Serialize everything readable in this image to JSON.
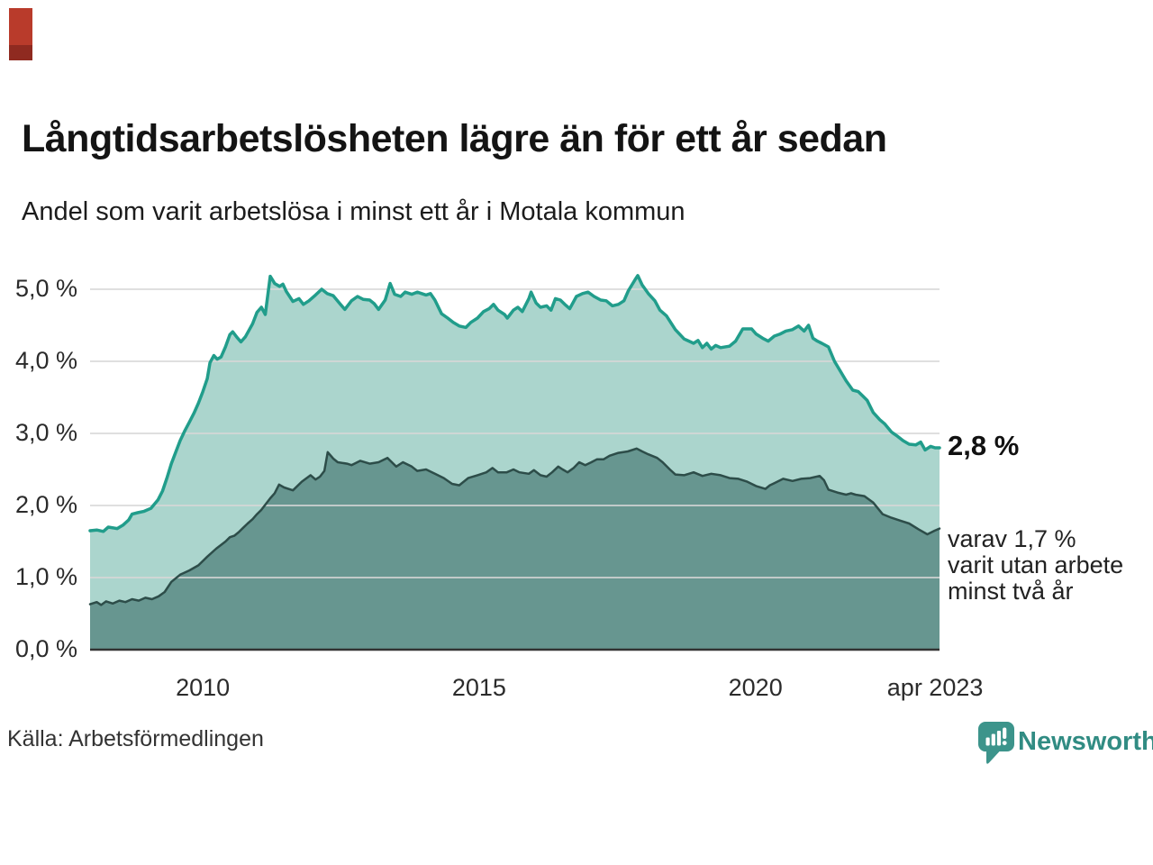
{
  "header": {
    "title": "Långtidsarbetslösheten lägre än för ett år sedan",
    "subtitle": "Andel som varit arbetslösa i minst ett år i Motala kommun"
  },
  "annotations": {
    "end_value": "2,8 %",
    "detail": [
      "varav 1,7 %",
      "varit utan arbete",
      "minst två år"
    ]
  },
  "footer": {
    "source": "Källa: Arbetsförmedlingen",
    "brand": "Newsworthy"
  },
  "colors": {
    "accent_teal_line": "#219d8b",
    "area_light_fill": "#abd5cd",
    "area_dark_fill": "#679690",
    "area_dark_line": "#2d4d49",
    "gridline": "#d8d8d8",
    "baseline": "#333333",
    "brand_teal": "#3c948b",
    "red_marker_top": "#b93b2b",
    "red_marker_bottom": "#8f2a20"
  },
  "chart_data": {
    "type": "area",
    "xlabel": "",
    "ylabel": "",
    "xlim": [
      2007.96,
      2023.33
    ],
    "ylim": [
      0,
      5.3
    ],
    "grid": true,
    "legend_position": "none",
    "x_ticks": [
      {
        "label": "2010",
        "x": 2010
      },
      {
        "label": "2015",
        "x": 2015
      },
      {
        "label": "2020",
        "x": 2020
      },
      {
        "label": "apr 2023",
        "x": 2023.25
      }
    ],
    "y_ticks": [
      {
        "label": "5,0 %",
        "value": 5.0
      },
      {
        "label": "4,0 %",
        "value": 4.0
      },
      {
        "label": "3,0 %",
        "value": 3.0
      },
      {
        "label": "2,0 %",
        "value": 2.0
      },
      {
        "label": "1,0 %",
        "value": 1.0
      },
      {
        "label": "0,0 %",
        "value": 0.0
      }
    ],
    "series": [
      {
        "name": "Arbetslösa minst ett år",
        "end_value_pct": 2.8,
        "fill": "#abd5cd",
        "stroke": "#219d8b",
        "stroke_width": 3.5,
        "points": [
          [
            2007.96,
            1.65
          ],
          [
            2008.08,
            1.66
          ],
          [
            2008.2,
            1.64
          ],
          [
            2008.29,
            1.7
          ],
          [
            2008.45,
            1.68
          ],
          [
            2008.56,
            1.73
          ],
          [
            2008.66,
            1.8
          ],
          [
            2008.72,
            1.88
          ],
          [
            2008.82,
            1.9
          ],
          [
            2008.94,
            1.92
          ],
          [
            2009.06,
            1.96
          ],
          [
            2009.19,
            2.08
          ],
          [
            2009.27,
            2.2
          ],
          [
            2009.35,
            2.38
          ],
          [
            2009.43,
            2.58
          ],
          [
            2009.51,
            2.74
          ],
          [
            2009.59,
            2.9
          ],
          [
            2009.67,
            3.03
          ],
          [
            2009.76,
            3.16
          ],
          [
            2009.84,
            3.28
          ],
          [
            2009.92,
            3.42
          ],
          [
            2010.0,
            3.58
          ],
          [
            2010.08,
            3.76
          ],
          [
            2010.13,
            3.98
          ],
          [
            2010.2,
            4.08
          ],
          [
            2010.26,
            4.03
          ],
          [
            2010.33,
            4.06
          ],
          [
            2010.41,
            4.2
          ],
          [
            2010.49,
            4.37
          ],
          [
            2010.54,
            4.41
          ],
          [
            2010.62,
            4.33
          ],
          [
            2010.69,
            4.27
          ],
          [
            2010.77,
            4.34
          ],
          [
            2010.9,
            4.52
          ],
          [
            2010.98,
            4.68
          ],
          [
            2011.06,
            4.75
          ],
          [
            2011.13,
            4.65
          ],
          [
            2011.22,
            5.18
          ],
          [
            2011.3,
            5.08
          ],
          [
            2011.39,
            5.04
          ],
          [
            2011.45,
            5.07
          ],
          [
            2011.51,
            4.97
          ],
          [
            2011.63,
            4.83
          ],
          [
            2011.74,
            4.87
          ],
          [
            2011.82,
            4.79
          ],
          [
            2011.92,
            4.84
          ],
          [
            2012.04,
            4.92
          ],
          [
            2012.15,
            5.0
          ],
          [
            2012.25,
            4.94
          ],
          [
            2012.36,
            4.91
          ],
          [
            2012.48,
            4.8
          ],
          [
            2012.57,
            4.72
          ],
          [
            2012.69,
            4.84
          ],
          [
            2012.8,
            4.9
          ],
          [
            2012.9,
            4.86
          ],
          [
            2013.02,
            4.85
          ],
          [
            2013.1,
            4.8
          ],
          [
            2013.18,
            4.72
          ],
          [
            2013.3,
            4.85
          ],
          [
            2013.39,
            5.08
          ],
          [
            2013.47,
            4.93
          ],
          [
            2013.58,
            4.9
          ],
          [
            2013.66,
            4.96
          ],
          [
            2013.78,
            4.93
          ],
          [
            2013.88,
            4.96
          ],
          [
            2014.04,
            4.92
          ],
          [
            2014.12,
            4.94
          ],
          [
            2014.2,
            4.85
          ],
          [
            2014.32,
            4.66
          ],
          [
            2014.43,
            4.6
          ],
          [
            2014.53,
            4.54
          ],
          [
            2014.64,
            4.49
          ],
          [
            2014.76,
            4.47
          ],
          [
            2014.85,
            4.54
          ],
          [
            2014.97,
            4.6
          ],
          [
            2015.08,
            4.69
          ],
          [
            2015.18,
            4.73
          ],
          [
            2015.26,
            4.79
          ],
          [
            2015.34,
            4.71
          ],
          [
            2015.46,
            4.65
          ],
          [
            2015.51,
            4.6
          ],
          [
            2015.62,
            4.71
          ],
          [
            2015.7,
            4.75
          ],
          [
            2015.78,
            4.69
          ],
          [
            2015.9,
            4.87
          ],
          [
            2015.94,
            4.96
          ],
          [
            2016.03,
            4.81
          ],
          [
            2016.11,
            4.75
          ],
          [
            2016.22,
            4.77
          ],
          [
            2016.3,
            4.71
          ],
          [
            2016.38,
            4.87
          ],
          [
            2016.47,
            4.85
          ],
          [
            2016.55,
            4.79
          ],
          [
            2016.64,
            4.73
          ],
          [
            2016.76,
            4.9
          ],
          [
            2016.87,
            4.94
          ],
          [
            2016.97,
            4.96
          ],
          [
            2017.08,
            4.9
          ],
          [
            2017.2,
            4.85
          ],
          [
            2017.3,
            4.84
          ],
          [
            2017.41,
            4.77
          ],
          [
            2017.52,
            4.79
          ],
          [
            2017.62,
            4.84
          ],
          [
            2017.7,
            4.98
          ],
          [
            2017.82,
            5.13
          ],
          [
            2017.87,
            5.19
          ],
          [
            2017.95,
            5.06
          ],
          [
            2018.06,
            4.94
          ],
          [
            2018.18,
            4.84
          ],
          [
            2018.27,
            4.71
          ],
          [
            2018.39,
            4.63
          ],
          [
            2018.55,
            4.44
          ],
          [
            2018.71,
            4.31
          ],
          [
            2018.88,
            4.25
          ],
          [
            2018.96,
            4.29
          ],
          [
            2019.04,
            4.19
          ],
          [
            2019.12,
            4.25
          ],
          [
            2019.2,
            4.17
          ],
          [
            2019.28,
            4.22
          ],
          [
            2019.37,
            4.19
          ],
          [
            2019.53,
            4.21
          ],
          [
            2019.64,
            4.28
          ],
          [
            2019.77,
            4.45
          ],
          [
            2019.93,
            4.45
          ],
          [
            2020.01,
            4.38
          ],
          [
            2020.13,
            4.32
          ],
          [
            2020.23,
            4.28
          ],
          [
            2020.34,
            4.35
          ],
          [
            2020.45,
            4.38
          ],
          [
            2020.55,
            4.42
          ],
          [
            2020.67,
            4.44
          ],
          [
            2020.78,
            4.49
          ],
          [
            2020.88,
            4.42
          ],
          [
            2020.96,
            4.5
          ],
          [
            2021.04,
            4.32
          ],
          [
            2021.12,
            4.28
          ],
          [
            2021.2,
            4.25
          ],
          [
            2021.32,
            4.2
          ],
          [
            2021.43,
            4.0
          ],
          [
            2021.53,
            3.87
          ],
          [
            2021.64,
            3.73
          ],
          [
            2021.76,
            3.6
          ],
          [
            2021.86,
            3.58
          ],
          [
            2021.94,
            3.52
          ],
          [
            2022.02,
            3.46
          ],
          [
            2022.13,
            3.29
          ],
          [
            2022.25,
            3.19
          ],
          [
            2022.34,
            3.13
          ],
          [
            2022.46,
            3.02
          ],
          [
            2022.57,
            2.96
          ],
          [
            2022.67,
            2.9
          ],
          [
            2022.78,
            2.85
          ],
          [
            2022.9,
            2.84
          ],
          [
            2022.99,
            2.88
          ],
          [
            2023.07,
            2.77
          ],
          [
            2023.17,
            2.82
          ],
          [
            2023.25,
            2.8
          ],
          [
            2023.33,
            2.8
          ]
        ]
      },
      {
        "name": "Utan arbete minst två år",
        "end_value_pct": 1.7,
        "fill": "#679690",
        "stroke": "#2d4d49",
        "stroke_width": 2.5,
        "points": [
          [
            2007.96,
            0.63
          ],
          [
            2008.08,
            0.66
          ],
          [
            2008.16,
            0.62
          ],
          [
            2008.25,
            0.67
          ],
          [
            2008.37,
            0.64
          ],
          [
            2008.49,
            0.68
          ],
          [
            2008.6,
            0.66
          ],
          [
            2008.72,
            0.7
          ],
          [
            2008.84,
            0.68
          ],
          [
            2008.96,
            0.72
          ],
          [
            2009.08,
            0.7
          ],
          [
            2009.2,
            0.74
          ],
          [
            2009.31,
            0.8
          ],
          [
            2009.43,
            0.94
          ],
          [
            2009.59,
            1.04
          ],
          [
            2009.76,
            1.1
          ],
          [
            2009.92,
            1.17
          ],
          [
            2010.08,
            1.29
          ],
          [
            2010.24,
            1.4
          ],
          [
            2010.41,
            1.5
          ],
          [
            2010.49,
            1.56
          ],
          [
            2010.57,
            1.58
          ],
          [
            2010.65,
            1.63
          ],
          [
            2010.73,
            1.69
          ],
          [
            2010.81,
            1.75
          ],
          [
            2010.9,
            1.81
          ],
          [
            2010.98,
            1.88
          ],
          [
            2011.06,
            1.94
          ],
          [
            2011.14,
            2.02
          ],
          [
            2011.22,
            2.1
          ],
          [
            2011.3,
            2.17
          ],
          [
            2011.38,
            2.29
          ],
          [
            2011.47,
            2.25
          ],
          [
            2011.63,
            2.21
          ],
          [
            2011.79,
            2.33
          ],
          [
            2011.95,
            2.42
          ],
          [
            2012.04,
            2.36
          ],
          [
            2012.12,
            2.4
          ],
          [
            2012.2,
            2.48
          ],
          [
            2012.26,
            2.74
          ],
          [
            2012.36,
            2.65
          ],
          [
            2012.44,
            2.6
          ],
          [
            2012.61,
            2.58
          ],
          [
            2012.69,
            2.56
          ],
          [
            2012.85,
            2.62
          ],
          [
            2013.02,
            2.58
          ],
          [
            2013.18,
            2.6
          ],
          [
            2013.34,
            2.66
          ],
          [
            2013.5,
            2.54
          ],
          [
            2013.62,
            2.6
          ],
          [
            2013.78,
            2.54
          ],
          [
            2013.88,
            2.48
          ],
          [
            2014.04,
            2.5
          ],
          [
            2014.2,
            2.44
          ],
          [
            2014.36,
            2.38
          ],
          [
            2014.51,
            2.3
          ],
          [
            2014.64,
            2.28
          ],
          [
            2014.8,
            2.38
          ],
          [
            2014.97,
            2.42
          ],
          [
            2015.13,
            2.46
          ],
          [
            2015.24,
            2.52
          ],
          [
            2015.34,
            2.46
          ],
          [
            2015.5,
            2.46
          ],
          [
            2015.62,
            2.5
          ],
          [
            2015.73,
            2.46
          ],
          [
            2015.9,
            2.44
          ],
          [
            2015.99,
            2.49
          ],
          [
            2016.11,
            2.42
          ],
          [
            2016.22,
            2.4
          ],
          [
            2016.32,
            2.46
          ],
          [
            2016.43,
            2.54
          ],
          [
            2016.51,
            2.5
          ],
          [
            2016.6,
            2.46
          ],
          [
            2016.71,
            2.52
          ],
          [
            2016.81,
            2.6
          ],
          [
            2016.92,
            2.56
          ],
          [
            2017.03,
            2.6
          ],
          [
            2017.13,
            2.64
          ],
          [
            2017.25,
            2.64
          ],
          [
            2017.36,
            2.69
          ],
          [
            2017.52,
            2.73
          ],
          [
            2017.69,
            2.75
          ],
          [
            2017.85,
            2.79
          ],
          [
            2017.95,
            2.75
          ],
          [
            2018.06,
            2.71
          ],
          [
            2018.22,
            2.66
          ],
          [
            2018.32,
            2.6
          ],
          [
            2018.45,
            2.5
          ],
          [
            2018.55,
            2.43
          ],
          [
            2018.71,
            2.42
          ],
          [
            2018.88,
            2.46
          ],
          [
            2019.04,
            2.41
          ],
          [
            2019.2,
            2.44
          ],
          [
            2019.37,
            2.42
          ],
          [
            2019.53,
            2.38
          ],
          [
            2019.69,
            2.37
          ],
          [
            2019.85,
            2.33
          ],
          [
            2020.01,
            2.27
          ],
          [
            2020.18,
            2.23
          ],
          [
            2020.26,
            2.28
          ],
          [
            2020.34,
            2.31
          ],
          [
            2020.5,
            2.37
          ],
          [
            2020.67,
            2.34
          ],
          [
            2020.83,
            2.37
          ],
          [
            2020.99,
            2.38
          ],
          [
            2021.16,
            2.41
          ],
          [
            2021.24,
            2.35
          ],
          [
            2021.32,
            2.22
          ],
          [
            2021.48,
            2.18
          ],
          [
            2021.64,
            2.15
          ],
          [
            2021.73,
            2.17
          ],
          [
            2021.81,
            2.15
          ],
          [
            2021.97,
            2.13
          ],
          [
            2022.13,
            2.04
          ],
          [
            2022.3,
            1.88
          ],
          [
            2022.46,
            1.83
          ],
          [
            2022.62,
            1.79
          ],
          [
            2022.78,
            1.75
          ],
          [
            2022.95,
            1.67
          ],
          [
            2023.11,
            1.6
          ],
          [
            2023.24,
            1.65
          ],
          [
            2023.33,
            1.68
          ]
        ]
      }
    ]
  }
}
